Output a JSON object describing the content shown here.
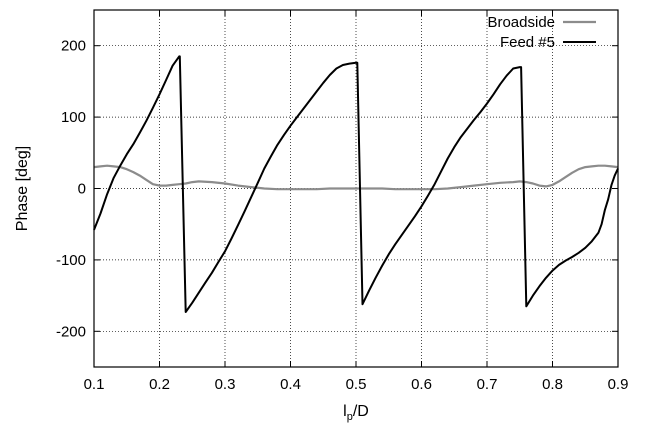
{
  "chart_data": {
    "type": "line",
    "xlabel": "l",
    "xlabel_sub": "p",
    "xlabel_tail": "/D",
    "ylabel": "Phase [deg]",
    "xlim": [
      0.1,
      0.9
    ],
    "ylim": [
      -250,
      250
    ],
    "xticks": [
      0.1,
      0.2,
      0.3,
      0.4,
      0.5,
      0.6,
      0.7,
      0.8,
      0.9
    ],
    "yticks": [
      -200,
      -100,
      0,
      100,
      200
    ],
    "grid": true,
    "legend_position": "top-right",
    "series": [
      {
        "name": "Broadside",
        "color": "#8c8c8c",
        "x": [
          0.1,
          0.11,
          0.12,
          0.13,
          0.14,
          0.15,
          0.16,
          0.17,
          0.18,
          0.19,
          0.2,
          0.21,
          0.22,
          0.23,
          0.24,
          0.25,
          0.26,
          0.28,
          0.3,
          0.32,
          0.34,
          0.36,
          0.38,
          0.4,
          0.42,
          0.44,
          0.46,
          0.48,
          0.5,
          0.52,
          0.54,
          0.56,
          0.58,
          0.6,
          0.62,
          0.64,
          0.66,
          0.68,
          0.7,
          0.72,
          0.74,
          0.75,
          0.76,
          0.77,
          0.78,
          0.79,
          0.8,
          0.81,
          0.82,
          0.83,
          0.84,
          0.85,
          0.86,
          0.87,
          0.88,
          0.89,
          0.9
        ],
        "y": [
          30,
          31,
          32,
          31,
          30,
          27,
          23,
          18,
          12,
          6,
          4,
          4,
          5,
          6,
          7,
          9,
          10,
          9,
          7,
          4,
          2,
          0,
          -1,
          -1,
          -1,
          -1,
          0,
          0,
          0,
          0,
          0,
          -1,
          -1,
          -1,
          -1,
          0,
          2,
          4,
          6,
          8,
          9,
          10,
          9,
          7,
          4,
          3,
          5,
          10,
          16,
          22,
          27,
          30,
          31,
          32,
          32,
          31,
          30
        ]
      },
      {
        "name": "Feed #5",
        "color": "#000000",
        "x": [
          0.1,
          0.11,
          0.12,
          0.13,
          0.14,
          0.15,
          0.16,
          0.17,
          0.18,
          0.19,
          0.2,
          0.21,
          0.22,
          0.23,
          0.231,
          0.24,
          0.25,
          0.26,
          0.27,
          0.28,
          0.29,
          0.3,
          0.31,
          0.32,
          0.33,
          0.34,
          0.35,
          0.36,
          0.37,
          0.38,
          0.39,
          0.4,
          0.41,
          0.42,
          0.43,
          0.44,
          0.45,
          0.46,
          0.47,
          0.48,
          0.49,
          0.5,
          0.502,
          0.51,
          0.52,
          0.53,
          0.54,
          0.55,
          0.56,
          0.57,
          0.58,
          0.59,
          0.6,
          0.61,
          0.62,
          0.63,
          0.64,
          0.65,
          0.66,
          0.67,
          0.68,
          0.69,
          0.7,
          0.71,
          0.72,
          0.73,
          0.74,
          0.75,
          0.752,
          0.76,
          0.77,
          0.78,
          0.79,
          0.8,
          0.81,
          0.82,
          0.83,
          0.84,
          0.85,
          0.86,
          0.87,
          0.875,
          0.88,
          0.885,
          0.89,
          0.895,
          0.9
        ],
        "y": [
          -58,
          -35,
          -8,
          15,
          32,
          48,
          62,
          78,
          95,
          113,
          132,
          152,
          172,
          185,
          185,
          -173,
          -160,
          -146,
          -132,
          -118,
          -103,
          -88,
          -70,
          -51,
          -32,
          -12,
          8,
          28,
          45,
          61,
          75,
          88,
          100,
          112,
          124,
          136,
          148,
          159,
          168,
          173,
          175,
          176,
          176,
          -162,
          -143,
          -125,
          -108,
          -92,
          -78,
          -65,
          -52,
          -39,
          -25,
          -10,
          6,
          24,
          42,
          58,
          72,
          84,
          96,
          107,
          119,
          132,
          146,
          158,
          168,
          170,
          170,
          -165,
          -150,
          -137,
          -125,
          -115,
          -107,
          -101,
          -96,
          -90,
          -83,
          -74,
          -62,
          -50,
          -30,
          -15,
          5,
          18,
          28
        ]
      }
    ]
  }
}
